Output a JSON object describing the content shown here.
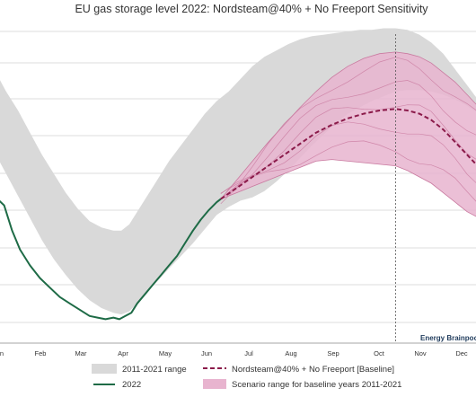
{
  "chart_data": {
    "type": "area",
    "title": "EU gas storage level 2022: Nordsteam@40% + No Freeport Sensitivity",
    "x_tick_labels": [
      "Jan",
      "Feb",
      "Mar",
      "Apr",
      "May",
      "Jun",
      "Jul",
      "Aug",
      "Sep",
      "Oct",
      "Nov",
      "Dec"
    ],
    "x_tick_labels_visible": [
      "n",
      "Feb",
      "Mar",
      "Apr",
      "May",
      "Jun",
      "Jul",
      "Aug",
      "Sep",
      "Oct",
      "Nov",
      "Dec"
    ],
    "x_unit": "month of year (0 = Jan 1, 12 = Dec 31)",
    "ylim": [
      0,
      100
    ],
    "y_unit": "percent full (approximate; axis labels not visible)",
    "grid": true,
    "vline_x": 10.0,
    "legend_position": "bottom",
    "watermark": "Energy Brainpool",
    "series": [
      {
        "name": "2011-2021 range",
        "kind": "band",
        "color": "#d9d9d9",
        "x": [
          -0.1,
          0.2,
          0.5,
          0.8,
          1.1,
          1.4,
          1.7,
          2.0,
          2.3,
          2.6,
          2.9,
          3.1,
          3.3,
          3.5,
          3.7,
          4.0,
          4.3,
          4.6,
          4.9,
          5.2,
          5.5,
          5.8,
          6.1,
          6.4,
          6.7,
          7.0,
          7.3,
          7.6,
          7.9,
          8.2,
          8.5,
          8.8,
          9.1,
          9.4,
          9.7,
          10.0,
          10.3,
          10.6,
          10.9,
          11.2,
          11.5,
          11.8,
          12.1
        ],
        "upper": [
          86,
          79,
          73,
          66,
          59,
          53,
          47,
          42,
          38,
          36,
          35,
          35,
          37,
          41,
          45,
          51,
          57,
          62,
          67,
          72,
          76,
          79,
          83,
          87,
          90,
          92,
          94,
          95.5,
          96.5,
          97,
          97.5,
          98,
          98.5,
          98.5,
          99,
          99,
          98.5,
          97,
          94.5,
          91,
          86,
          81,
          76
        ],
        "lower": [
          60,
          53,
          46,
          39,
          32,
          26,
          21,
          16.5,
          13,
          10.5,
          9,
          8.5,
          9.5,
          12,
          15,
          19,
          23,
          27,
          31,
          35.5,
          40,
          42.5,
          44.5,
          45.5,
          47.5,
          50.5,
          54,
          58,
          62,
          65.5,
          69,
          72,
          74,
          76,
          77.5,
          79,
          79.5,
          79.5,
          79,
          78,
          76.5,
          74.5,
          72
        ]
      },
      {
        "name": "2022",
        "kind": "line",
        "color": "#1e6b46",
        "x": [
          -0.1,
          0.15,
          0.35,
          0.55,
          0.8,
          1.05,
          1.3,
          1.55,
          1.8,
          2.05,
          2.3,
          2.5,
          2.7,
          2.9,
          3.05,
          3.2,
          3.35,
          3.5,
          3.7,
          3.9,
          4.1,
          4.3,
          4.5,
          4.7,
          4.9,
          5.1,
          5.3,
          5.5,
          5.6
        ],
        "y": [
          46,
          43,
          35,
          29,
          24,
          20,
          17,
          14,
          12,
          10,
          8,
          7.5,
          7,
          7.5,
          7,
          8,
          9,
          12,
          15,
          18,
          21,
          24,
          27,
          31,
          35,
          38.5,
          41.5,
          44,
          45
        ]
      },
      {
        "name": "Scenario range for baseline years 2011-2021",
        "kind": "band",
        "color": "#e8b4cf",
        "x": [
          5.6,
          6.0,
          6.4,
          6.8,
          7.2,
          7.6,
          8.0,
          8.4,
          8.8,
          9.2,
          9.6,
          10.0,
          10.3,
          10.6,
          10.9,
          11.2,
          11.5,
          11.8,
          12.1
        ],
        "upper": [
          45,
          51,
          57,
          63,
          68.5,
          74,
          79,
          83.5,
          87,
          89.5,
          91,
          91.5,
          91,
          90,
          88,
          85,
          82,
          78,
          74
        ],
        "lower": [
          45,
          47,
          49,
          51,
          53,
          55,
          57,
          57.5,
          57,
          56.5,
          56,
          55.5,
          54,
          52,
          50,
          47,
          44,
          41,
          39
        ]
      },
      {
        "name": "Nordsteam@40% + No Freeport  [Baseline]",
        "kind": "dashed-line",
        "color": "#8b1a4a",
        "x": [
          5.6,
          6.0,
          6.4,
          6.8,
          7.2,
          7.6,
          8.0,
          8.4,
          8.8,
          9.2,
          9.6,
          10.0,
          10.3,
          10.6,
          10.9,
          11.2,
          11.5,
          11.8,
          12.1
        ],
        "y": [
          45,
          48.5,
          52,
          55.5,
          59,
          62.5,
          66,
          68.5,
          70.5,
          72,
          73,
          73.5,
          73,
          72,
          70,
          67,
          63,
          59,
          55
        ]
      }
    ]
  },
  "legend": {
    "range_label": "2011-2021 range",
    "line_2022_label": "2022",
    "baseline_label": "Nordsteam@40% + No Freeport  [Baseline]",
    "scenario_label": "Scenario range for baseline years 2011-2021"
  },
  "colors": {
    "range_fill": "#d9d9d9",
    "line_2022": "#1e6b46",
    "baseline": "#8b1a4a",
    "scenario_fill": "#e8b4cf",
    "scenario_stroke": "#c9799f",
    "grid": "#dddddd"
  }
}
